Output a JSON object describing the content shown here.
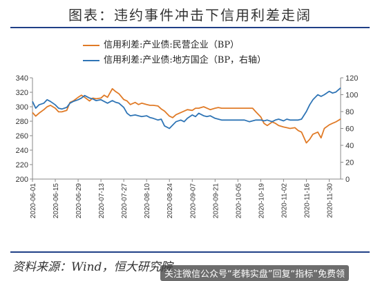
{
  "title": "图表：违约事件冲击下信用利差走阔",
  "source": "资料来源：Wind，恒大研究院",
  "watermark": "关注微信公众号“老韩实盘”回复“指标”免费领",
  "colors": {
    "series1": "#e07a26",
    "series2": "#2e74b5",
    "rule": "#1f3f86"
  },
  "chart_data": {
    "type": "line",
    "x_type": "date",
    "x_start": "2020-06-01",
    "x_end": "2020-12-07",
    "x_ticks": [
      "2020-06-01",
      "2020-06-15",
      "2020-06-29",
      "2020-07-13",
      "2020-07-27",
      "2020-08-10",
      "2020-08-24",
      "2020-09-07",
      "2020-09-21",
      "2020-10-05",
      "2020-10-19",
      "2020-11-02",
      "2020-11-16",
      "2020-11-30"
    ],
    "y_left": {
      "range": [
        200,
        340
      ],
      "ticks": [
        200,
        220,
        240,
        260,
        280,
        300,
        320,
        340
      ]
    },
    "y_right": {
      "range": [
        0,
        120
      ],
      "ticks": [
        0,
        20,
        40,
        60,
        80,
        100,
        120
      ]
    },
    "grid": false,
    "legend_position": "top-left",
    "series": [
      {
        "name": "信用利差:产业债:民营企业（BP）",
        "axis": "left",
        "points": [
          [
            "2020-06-01",
            292
          ],
          [
            "2020-06-03",
            287
          ],
          [
            "2020-06-05",
            291
          ],
          [
            "2020-06-08",
            296
          ],
          [
            "2020-06-10",
            300
          ],
          [
            "2020-06-12",
            302
          ],
          [
            "2020-06-15",
            298
          ],
          [
            "2020-06-17",
            293
          ],
          [
            "2020-06-19",
            293
          ],
          [
            "2020-06-22",
            295
          ],
          [
            "2020-06-24",
            306
          ],
          [
            "2020-06-26",
            308
          ],
          [
            "2020-06-29",
            313
          ],
          [
            "2020-07-01",
            316
          ],
          [
            "2020-07-03",
            313
          ],
          [
            "2020-07-06",
            308
          ],
          [
            "2020-07-08",
            312
          ],
          [
            "2020-07-10",
            311
          ],
          [
            "2020-07-13",
            312
          ],
          [
            "2020-07-15",
            316
          ],
          [
            "2020-07-17",
            313
          ],
          [
            "2020-07-20",
            325
          ],
          [
            "2020-07-22",
            321
          ],
          [
            "2020-07-24",
            318
          ],
          [
            "2020-07-27",
            310
          ],
          [
            "2020-07-29",
            308
          ],
          [
            "2020-07-31",
            303
          ],
          [
            "2020-08-03",
            306
          ],
          [
            "2020-08-05",
            303
          ],
          [
            "2020-08-07",
            305
          ],
          [
            "2020-08-10",
            303
          ],
          [
            "2020-08-12",
            302
          ],
          [
            "2020-08-14",
            302
          ],
          [
            "2020-08-17",
            301
          ],
          [
            "2020-08-19",
            297
          ],
          [
            "2020-08-21",
            294
          ],
          [
            "2020-08-24",
            287
          ],
          [
            "2020-08-26",
            285
          ],
          [
            "2020-08-28",
            289
          ],
          [
            "2020-08-31",
            292
          ],
          [
            "2020-09-02",
            294
          ],
          [
            "2020-09-04",
            296
          ],
          [
            "2020-09-07",
            295
          ],
          [
            "2020-09-09",
            298
          ],
          [
            "2020-09-11",
            298
          ],
          [
            "2020-09-14",
            300
          ],
          [
            "2020-09-16",
            298
          ],
          [
            "2020-09-18",
            296
          ],
          [
            "2020-09-21",
            298
          ],
          [
            "2020-09-23",
            299
          ],
          [
            "2020-09-25",
            298
          ],
          [
            "2020-09-28",
            298
          ],
          [
            "2020-10-09",
            298
          ],
          [
            "2020-10-12",
            298
          ],
          [
            "2020-10-14",
            298
          ],
          [
            "2020-10-16",
            293
          ],
          [
            "2020-10-19",
            286
          ],
          [
            "2020-10-21",
            277
          ],
          [
            "2020-10-23",
            274
          ],
          [
            "2020-10-26",
            279
          ],
          [
            "2020-10-28",
            277
          ],
          [
            "2020-10-30",
            274
          ],
          [
            "2020-11-02",
            272
          ],
          [
            "2020-11-04",
            271
          ],
          [
            "2020-11-06",
            270
          ],
          [
            "2020-11-09",
            271
          ],
          [
            "2020-11-11",
            267
          ],
          [
            "2020-11-13",
            265
          ],
          [
            "2020-11-16",
            250
          ],
          [
            "2020-11-18",
            255
          ],
          [
            "2020-11-20",
            262
          ],
          [
            "2020-11-23",
            265
          ],
          [
            "2020-11-25",
            257
          ],
          [
            "2020-11-27",
            270
          ],
          [
            "2020-11-30",
            275
          ],
          [
            "2020-12-02",
            277
          ],
          [
            "2020-12-04",
            279
          ],
          [
            "2020-12-07",
            283
          ]
        ]
      },
      {
        "name": "信用利差:产业债:地方国企（BP，右轴）",
        "axis": "right",
        "points": [
          [
            "2020-06-01",
            92
          ],
          [
            "2020-06-03",
            84
          ],
          [
            "2020-06-05",
            88
          ],
          [
            "2020-06-08",
            90
          ],
          [
            "2020-06-10",
            94
          ],
          [
            "2020-06-12",
            92
          ],
          [
            "2020-06-15",
            88
          ],
          [
            "2020-06-17",
            84
          ],
          [
            "2020-06-19",
            83
          ],
          [
            "2020-06-22",
            85
          ],
          [
            "2020-06-24",
            90
          ],
          [
            "2020-06-26",
            92
          ],
          [
            "2020-06-29",
            94
          ],
          [
            "2020-07-01",
            96
          ],
          [
            "2020-07-03",
            99
          ],
          [
            "2020-07-06",
            96
          ],
          [
            "2020-07-08",
            95
          ],
          [
            "2020-07-10",
            93
          ],
          [
            "2020-07-13",
            94
          ],
          [
            "2020-07-15",
            92
          ],
          [
            "2020-07-17",
            90
          ],
          [
            "2020-07-20",
            93
          ],
          [
            "2020-07-22",
            91
          ],
          [
            "2020-07-24",
            90
          ],
          [
            "2020-07-27",
            85
          ],
          [
            "2020-07-29",
            78
          ],
          [
            "2020-07-31",
            75
          ],
          [
            "2020-08-03",
            76
          ],
          [
            "2020-08-05",
            75
          ],
          [
            "2020-08-07",
            74
          ],
          [
            "2020-08-10",
            75
          ],
          [
            "2020-08-12",
            73
          ],
          [
            "2020-08-14",
            72
          ],
          [
            "2020-08-17",
            70
          ],
          [
            "2020-08-19",
            71
          ],
          [
            "2020-08-21",
            63
          ],
          [
            "2020-08-24",
            60
          ],
          [
            "2020-08-26",
            64
          ],
          [
            "2020-08-28",
            68
          ],
          [
            "2020-08-31",
            70
          ],
          [
            "2020-09-02",
            68
          ],
          [
            "2020-09-04",
            72
          ],
          [
            "2020-09-07",
            76
          ],
          [
            "2020-09-09",
            74
          ],
          [
            "2020-09-11",
            78
          ],
          [
            "2020-09-14",
            75
          ],
          [
            "2020-09-16",
            74
          ],
          [
            "2020-09-18",
            75
          ],
          [
            "2020-09-21",
            72
          ],
          [
            "2020-09-23",
            71
          ],
          [
            "2020-09-25",
            70
          ],
          [
            "2020-09-28",
            70
          ],
          [
            "2020-10-09",
            70
          ],
          [
            "2020-10-12",
            68
          ],
          [
            "2020-10-14",
            69
          ],
          [
            "2020-10-16",
            70
          ],
          [
            "2020-10-19",
            70
          ],
          [
            "2020-10-21",
            69
          ],
          [
            "2020-10-23",
            70
          ],
          [
            "2020-10-26",
            68
          ],
          [
            "2020-10-28",
            70
          ],
          [
            "2020-10-30",
            71
          ],
          [
            "2020-11-02",
            69
          ],
          [
            "2020-11-04",
            71
          ],
          [
            "2020-11-06",
            70
          ],
          [
            "2020-11-09",
            70
          ],
          [
            "2020-11-11",
            70
          ],
          [
            "2020-11-13",
            71
          ],
          [
            "2020-11-16",
            80
          ],
          [
            "2020-11-18",
            88
          ],
          [
            "2020-11-20",
            94
          ],
          [
            "2020-11-23",
            100
          ],
          [
            "2020-11-25",
            98
          ],
          [
            "2020-11-27",
            100
          ],
          [
            "2020-11-30",
            104
          ],
          [
            "2020-12-02",
            102
          ],
          [
            "2020-12-04",
            103
          ],
          [
            "2020-12-07",
            108
          ]
        ]
      }
    ]
  }
}
